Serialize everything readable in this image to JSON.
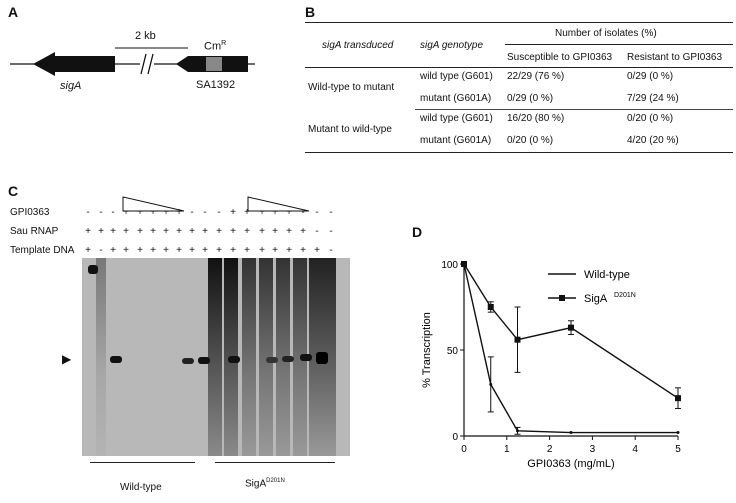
{
  "panels": {
    "a": "A",
    "b": "B",
    "c": "C",
    "d": "D"
  },
  "panel_a": {
    "scale": "2 kb",
    "gene1": "sigA",
    "gene2": "SA1392",
    "marker": "Cm",
    "marker_sup": "R",
    "break_symbol": "//"
  },
  "panel_b": {
    "col_transduced": "sigA transduced",
    "col_genotype": "sigA genotype",
    "col_isolates": "Number of isolates (%)",
    "col_susceptible": "Susceptible to GPI0363",
    "col_resistant": "Resistant to GPI0363",
    "groups": [
      {
        "name": "Wild-type to mutant",
        "rows": [
          {
            "genotype": "wild type (G601)",
            "susceptible": "22/29 (76 %)",
            "resistant": "0/29 (0 %)"
          },
          {
            "genotype": "mutant (G601A)",
            "susceptible": "0/29 (0 %)",
            "resistant": "7/29 (24 %)"
          }
        ]
      },
      {
        "name": "Mutant to wild-type",
        "rows": [
          {
            "genotype": "wild type (G601)",
            "susceptible": "16/20 (80 %)",
            "resistant": "0/20 (0 %)"
          },
          {
            "genotype": "mutant (G601A)",
            "susceptible": "0/20 (0 %)",
            "resistant": "4/20 (20 %)"
          }
        ]
      }
    ]
  },
  "panel_c": {
    "row_labels": [
      "GPI0363",
      "Sau RNAP",
      "Template DNA"
    ],
    "marks": [
      [
        "-",
        "-",
        "-",
        "+",
        "+",
        "+",
        "+",
        "+",
        "-",
        "-",
        "-",
        "+",
        "+",
        "+",
        "+",
        "+",
        "-",
        "-",
        "-"
      ],
      [
        "+",
        "+",
        "+",
        "+",
        "+",
        "+",
        "+",
        "+",
        "+",
        "+",
        "+",
        "+",
        "+",
        "+",
        "+",
        "+",
        "+",
        "-",
        "-"
      ],
      [
        "+",
        "-",
        "+",
        "+",
        "+",
        "+",
        "+",
        "+",
        "+",
        "+",
        "+",
        "+",
        "+",
        "+",
        "+",
        "+",
        "+",
        "+",
        "-"
      ]
    ],
    "arrow": "▶",
    "group1": "Wild-type",
    "group2": "SigA",
    "group2_sup": "D201N"
  },
  "chart_data": {
    "type": "line",
    "xlabel": "GPI0363 (mg/mL)",
    "ylabel": "% Transcription",
    "xlim": [
      0,
      5
    ],
    "ylim": [
      0,
      100
    ],
    "xticks": [
      0,
      1,
      2,
      3,
      4,
      5
    ],
    "yticks": [
      0,
      50,
      100
    ],
    "legend_position": "top-right",
    "series": [
      {
        "name": "Wild-type",
        "marker": "none",
        "x": [
          0,
          0.625,
          1.25,
          2.5,
          5
        ],
        "y": [
          100,
          30,
          3,
          2,
          2
        ],
        "err": [
          0,
          16,
          2,
          0,
          0
        ]
      },
      {
        "name": "SigA",
        "name_sup": "D201N",
        "marker": "square",
        "x": [
          0,
          0.625,
          1.25,
          2.5,
          5
        ],
        "y": [
          100,
          75,
          56,
          63,
          22
        ],
        "err": [
          0,
          3,
          19,
          4,
          6
        ]
      }
    ]
  }
}
